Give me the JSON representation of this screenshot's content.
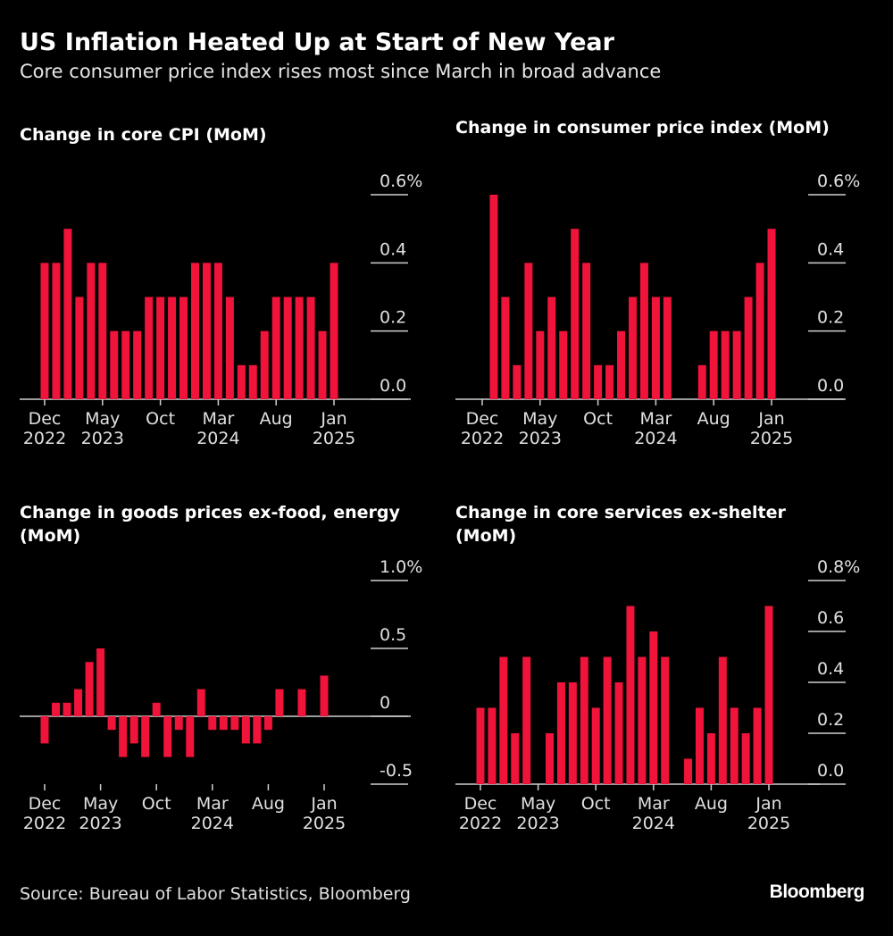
{
  "title": "US Inflation Heated Up at Start of New Year",
  "subtitle": "Core consumer price index rises most since March in broad advance",
  "source": "Source: Bureau of Labor Statistics, Bloomberg",
  "brand": "Bloomberg",
  "chart_data": [
    {
      "type": "bar",
      "title": "Change in core CPI (MoM)",
      "categories": [
        "Dec\n2022",
        null,
        null,
        null,
        null,
        "May\n2023",
        null,
        null,
        null,
        null,
        "Oct",
        null,
        null,
        null,
        null,
        "Mar\n2024",
        null,
        null,
        null,
        null,
        "Aug",
        null,
        null,
        null,
        null,
        "Jan\n2025"
      ],
      "values": [
        0.4,
        0.4,
        0.5,
        0.3,
        0.4,
        0.4,
        0.2,
        0.2,
        0.2,
        0.3,
        0.3,
        0.3,
        0.3,
        0.4,
        0.4,
        0.4,
        0.3,
        0.1,
        0.1,
        0.2,
        0.3,
        0.3,
        0.3,
        0.3,
        0.2,
        0.4
      ],
      "color": "#f0133a",
      "ylim": [
        0,
        0.6
      ],
      "yticks": [
        {
          "value": 0,
          "label": "0.0"
        },
        0.2,
        0.4,
        {
          "value": 0.6,
          "label": "0.6%"
        }
      ],
      "grid": true
    },
    {
      "type": "bar",
      "title": "Change in consumer price index (MoM)",
      "categories": [
        "Dec\n2022",
        null,
        null,
        null,
        null,
        "May\n2023",
        null,
        null,
        null,
        null,
        "Oct",
        null,
        null,
        null,
        null,
        "Mar\n2024",
        null,
        null,
        null,
        null,
        "Aug",
        null,
        null,
        null,
        null,
        "Jan\n2025"
      ],
      "values": [
        0.0,
        0.6,
        0.3,
        0.1,
        0.4,
        0.2,
        0.3,
        0.2,
        0.5,
        0.4,
        0.1,
        0.1,
        0.2,
        0.3,
        0.4,
        0.3,
        0.3,
        0.0,
        0.0,
        0.1,
        0.2,
        0.2,
        0.2,
        0.3,
        0.4,
        0.5
      ],
      "color": "#f0133a",
      "ylim": [
        0,
        0.6
      ],
      "yticks": [
        {
          "value": 0,
          "label": "0.0"
        },
        0.2,
        0.4,
        {
          "value": 0.6,
          "label": "0.6%"
        }
      ],
      "grid": true
    },
    {
      "type": "bar",
      "title": "Change in goods prices ex-food, energy (MoM)",
      "categories": [
        "Dec\n2022",
        null,
        null,
        null,
        null,
        "May\n2023",
        null,
        null,
        null,
        null,
        "Oct",
        null,
        null,
        null,
        null,
        "Mar\n2024",
        null,
        null,
        null,
        null,
        "Aug",
        null,
        null,
        null,
        null,
        "Jan\n2025"
      ],
      "values": [
        -0.2,
        0.1,
        0.1,
        0.2,
        0.4,
        0.5,
        -0.1,
        -0.3,
        -0.2,
        -0.3,
        0.1,
        -0.3,
        -0.1,
        -0.3,
        0.2,
        -0.1,
        -0.1,
        -0.1,
        -0.2,
        -0.2,
        -0.1,
        0.2,
        0.0,
        0.2,
        0.0,
        0.3
      ],
      "color": "#f0133a",
      "ylim": [
        -0.5,
        1.0
      ],
      "yticks": [
        -0.5,
        0,
        0.5,
        {
          "value": 1.0,
          "label": "1.0%"
        }
      ],
      "grid": true
    },
    {
      "type": "bar",
      "title": "Change in core services ex-shelter (MoM)",
      "categories": [
        "Dec\n2022",
        null,
        null,
        null,
        null,
        "May\n2023",
        null,
        null,
        null,
        null,
        "Oct",
        null,
        null,
        null,
        null,
        "Mar\n2024",
        null,
        null,
        null,
        null,
        "Aug",
        null,
        null,
        null,
        null,
        "Jan\n2025"
      ],
      "values": [
        0.3,
        0.3,
        0.5,
        0.2,
        0.5,
        0.0,
        0.2,
        0.4,
        0.4,
        0.5,
        0.3,
        0.5,
        0.4,
        0.7,
        0.5,
        0.6,
        0.5,
        0.0,
        0.1,
        0.3,
        0.2,
        0.5,
        0.3,
        0.2,
        0.3,
        0.7
      ],
      "color": "#f0133a",
      "ylim": [
        0,
        0.8
      ],
      "yticks": [
        {
          "value": 0,
          "label": "0.0"
        },
        0.2,
        0.4,
        0.6,
        {
          "value": 0.8,
          "label": "0.8%"
        }
      ],
      "grid": true
    }
  ]
}
